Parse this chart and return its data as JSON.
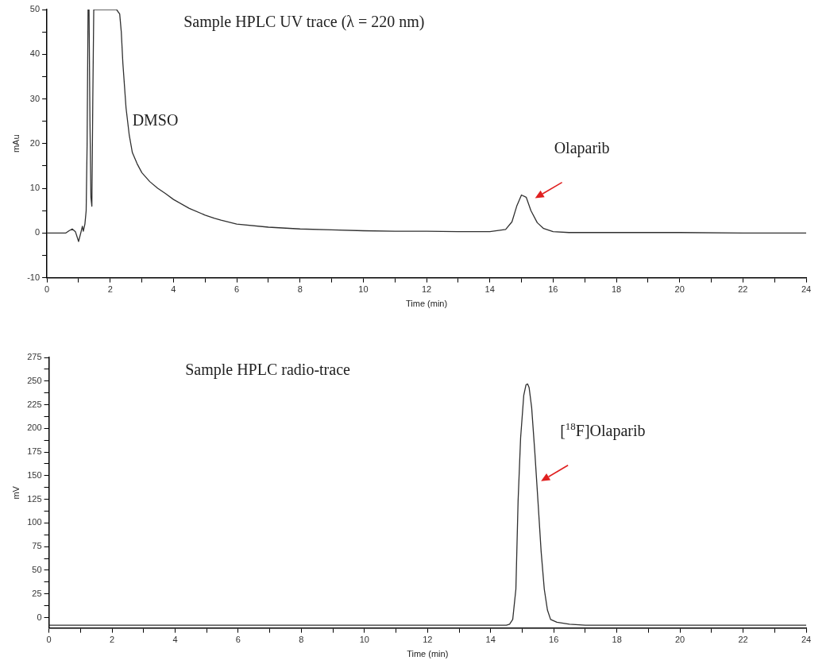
{
  "chart_data": [
    {
      "type": "line",
      "title": "Sample HPLC UV trace (λ = 220 nm)",
      "xlabel": "Time (min)",
      "ylabel": "mAu",
      "xlim": [
        0,
        24
      ],
      "ylim": [
        -10,
        50
      ],
      "xticks": [
        0,
        {
          "value": 1,
          "label": null
        },
        2,
        {
          "value": 3,
          "label": null
        },
        4,
        {
          "value": 5,
          "label": null
        },
        6,
        {
          "value": 7,
          "label": null
        },
        8,
        {
          "value": 9,
          "label": null
        },
        10,
        {
          "value": 11,
          "label": null
        },
        12,
        {
          "value": 13,
          "label": null
        },
        14,
        {
          "value": 15,
          "label": null
        },
        16,
        {
          "value": 17,
          "label": null
        },
        18,
        {
          "value": 19,
          "label": null
        },
        20,
        {
          "value": 21,
          "label": null
        },
        22,
        {
          "value": 23,
          "label": null
        },
        24
      ],
      "yticks": [
        -10,
        {
          "value": -5,
          "label": null
        },
        0,
        {
          "value": 5,
          "label": null
        },
        10,
        {
          "value": 15,
          "label": null
        },
        20,
        {
          "value": 25,
          "label": null
        },
        30,
        {
          "value": 35,
          "label": null
        },
        40,
        {
          "value": 45,
          "label": null
        },
        50
      ],
      "grid": false,
      "legend": false,
      "marker": "none",
      "line_style": "solid",
      "series": [
        {
          "color": "#303030",
          "x": [
            0,
            0.6,
            0.7,
            0.8,
            0.9,
            1.0,
            1.08,
            1.12,
            1.15,
            1.2,
            1.24,
            1.27,
            1.3,
            1.33,
            1.36,
            1.39,
            1.42,
            1.45,
            1.48,
            1.52,
            2.2,
            2.3,
            2.35,
            2.4,
            2.5,
            2.6,
            2.7,
            2.85,
            3.0,
            3.25,
            3.5,
            3.75,
            4.0,
            4.5,
            5.0,
            5.3,
            5.5,
            6.0,
            7.0,
            8.0,
            9.0,
            10.0,
            11.0,
            12.0,
            13.0,
            14.0,
            14.5,
            14.7,
            14.85,
            15.0,
            15.15,
            15.3,
            15.5,
            15.7,
            16.0,
            16.5,
            18,
            20,
            22,
            24
          ],
          "values": [
            0,
            0,
            0.5,
            0.9,
            0.3,
            -1.9,
            0.3,
            1.5,
            0.4,
            2,
            5,
            20,
            50,
            50,
            25,
            8,
            6,
            30,
            50,
            50,
            50,
            49,
            45,
            38,
            28,
            22,
            18,
            15.5,
            13.5,
            11.5,
            10,
            8.8,
            7.5,
            5.5,
            4,
            3.3,
            2.9,
            2,
            1.3,
            0.9,
            0.7,
            0.5,
            0.4,
            0.4,
            0.3,
            0.3,
            0.8,
            2.5,
            6,
            8.5,
            8,
            5,
            2.3,
            1,
            0.3,
            0.1,
            0.1,
            0.1,
            0,
            0
          ]
        }
      ],
      "annotations": [
        {
          "text": "DMSO",
          "x": 2.7,
          "y": 24
        },
        "Olaparib"
      ]
    },
    {
      "type": "line",
      "title": "Sample HPLC radio-trace",
      "xlabel": "Time (min)",
      "ylabel": "mV",
      "xlim": [
        0,
        24
      ],
      "ylim": [
        -11,
        275
      ],
      "xticks": [
        0,
        {
          "value": 1,
          "label": null
        },
        2,
        {
          "value": 3,
          "label": null
        },
        4,
        {
          "value": 5,
          "label": null
        },
        6,
        {
          "value": 7,
          "label": null
        },
        8,
        {
          "value": 9,
          "label": null
        },
        10,
        {
          "value": 11,
          "label": null
        },
        12,
        {
          "value": 13,
          "label": null
        },
        14,
        {
          "value": 15,
          "label": null
        },
        16,
        {
          "value": 17,
          "label": null
        },
        18,
        {
          "value": 19,
          "label": null
        },
        20,
        {
          "value": 21,
          "label": null
        },
        22,
        {
          "value": 23,
          "label": null
        },
        24
      ],
      "yticks": [
        0,
        {
          "value": 12.5,
          "label": null
        },
        25,
        {
          "value": 37.5,
          "label": null
        },
        50,
        {
          "value": 62.5,
          "label": null
        },
        75,
        {
          "value": 87.5,
          "label": null
        },
        100,
        {
          "value": 112.5,
          "label": null
        },
        125,
        {
          "value": 137.5,
          "label": null
        },
        150,
        {
          "value": 162.5,
          "label": null
        },
        175,
        {
          "value": 187.5,
          "label": null
        },
        200,
        {
          "value": 212.5,
          "label": null
        },
        225,
        {
          "value": 237.5,
          "label": null
        },
        250,
        {
          "value": 262.5,
          "label": null
        },
        275
      ],
      "grid": false,
      "legend": false,
      "marker": "none",
      "line_style": "solid",
      "series": [
        {
          "color": "#303030",
          "x": [
            0,
            14.5,
            14.6,
            14.7,
            14.8,
            14.87,
            14.95,
            15.05,
            15.12,
            15.17,
            15.22,
            15.3,
            15.4,
            15.5,
            15.6,
            15.7,
            15.8,
            15.9,
            16.1,
            16.5,
            17,
            24
          ],
          "values": [
            -8,
            -8,
            -7,
            -2,
            30,
            123,
            190,
            235,
            246,
            247,
            243,
            222,
            175,
            123,
            70,
            30,
            8,
            -2,
            -5,
            -7,
            -8,
            -8
          ]
        }
      ],
      "annotations": [
        "[$^{18}$F]Olaparib"
      ]
    }
  ]
}
